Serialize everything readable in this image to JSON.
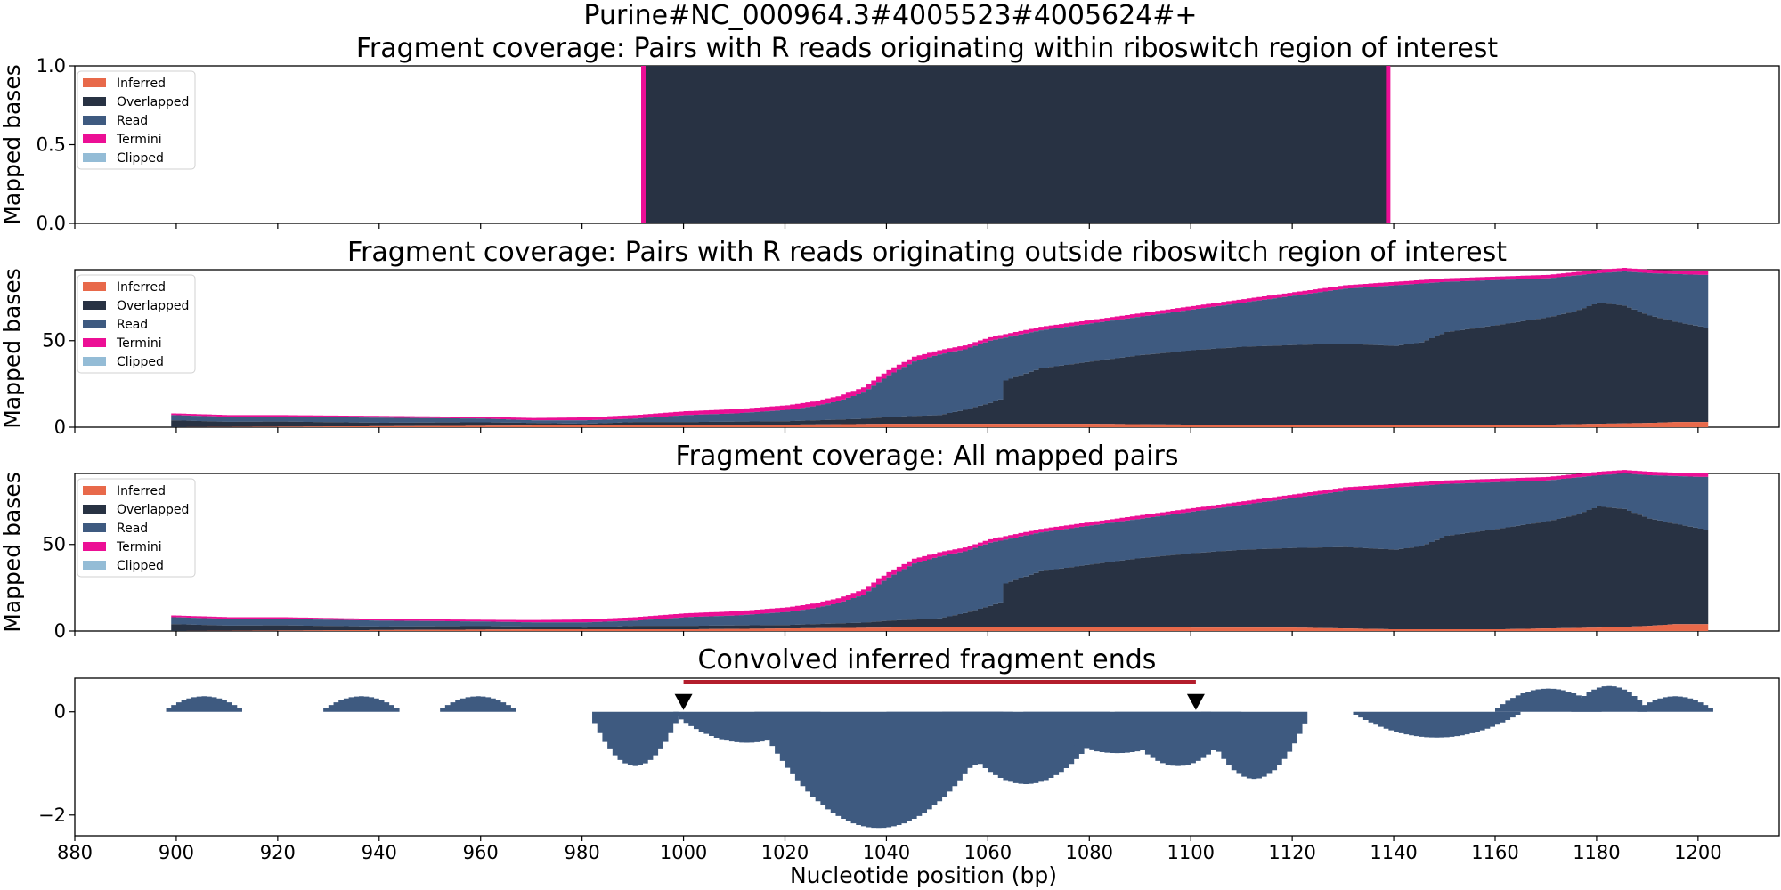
{
  "figure": {
    "suptitle": "Purine#NC_000964.3#4005523#4005624#+",
    "xlabel": "Nucleotide position (bp)",
    "xlim": [
      880,
      1216
    ],
    "xticks": [
      880,
      900,
      920,
      940,
      960,
      980,
      1000,
      1020,
      1040,
      1060,
      1080,
      1100,
      1120,
      1140,
      1160,
      1180,
      1200
    ]
  },
  "colors": {
    "inferred": "#e8694a",
    "overlapped": "#283243",
    "read": "#3e5a80",
    "termini": "#ec0f95",
    "clipped": "#94bcd6",
    "hist": "#3e5a80",
    "region_bar": "#b31d2c",
    "marker": "#000000"
  },
  "legend": [
    "Inferred",
    "Overlapped",
    "Read",
    "Termini",
    "Clipped"
  ],
  "chart_data": [
    {
      "type": "area",
      "title": "Fragment coverage: Pairs with R reads originating within riboswitch region of interest",
      "ylabel": "Mapped bases",
      "ylim": [
        0,
        1.0
      ],
      "yticks": [
        "0.0",
        "0.5",
        "1.0"
      ],
      "series": [
        {
          "name": "Overlapped",
          "x": [
            992,
            1139
          ],
          "values": [
            1.0,
            1.0
          ]
        },
        {
          "name": "Termini",
          "x": [
            992,
            1139
          ],
          "values": [
            1.0,
            1.0
          ]
        }
      ]
    },
    {
      "type": "area",
      "title": "Fragment coverage: Pairs with R reads originating outside riboswitch region of interest",
      "ylabel": "Mapped bases",
      "ylim": [
        0,
        91
      ],
      "yticks": [
        "0",
        "50"
      ],
      "series": [
        {
          "name": "Inferred",
          "x": [
            899,
            970,
            1000,
            1020,
            1040,
            1060,
            1080,
            1100,
            1120,
            1140,
            1160,
            1180,
            1190,
            1195,
            1202
          ],
          "values": [
            0,
            1,
            1,
            1.5,
            2,
            2,
            2,
            1.5,
            1.5,
            1,
            1,
            2,
            2.5,
            3,
            3
          ]
        },
        {
          "name": "Overlapped",
          "x": [
            899,
            910,
            920,
            940,
            960,
            980,
            990,
            1000,
            1020,
            1035,
            1040,
            1050,
            1055,
            1060,
            1062,
            1063,
            1070,
            1080,
            1090,
            1100,
            1110,
            1120,
            1130,
            1140,
            1145,
            1150,
            1160,
            1170,
            1175,
            1180,
            1185,
            1190,
            1195,
            1202
          ],
          "values": [
            4,
            3,
            3,
            2,
            2,
            1,
            2,
            2,
            2,
            3,
            4,
            5,
            8,
            12,
            14,
            25,
            32,
            36,
            40,
            43,
            45,
            46,
            47,
            46,
            48,
            54,
            58,
            62,
            65,
            70,
            68,
            62,
            58,
            54
          ]
        },
        {
          "name": "Read",
          "x": [
            899,
            910,
            920,
            940,
            960,
            970,
            980,
            990,
            1000,
            1010,
            1020,
            1025,
            1030,
            1035,
            1040,
            1045,
            1050,
            1055,
            1060,
            1070,
            1080,
            1090,
            1100,
            1110,
            1120,
            1130,
            1140,
            1150,
            1160,
            1170,
            1180,
            1185,
            1190,
            1200,
            1202
          ],
          "values": [
            7,
            6,
            6,
            5.5,
            5,
            4,
            4,
            5,
            7,
            8,
            10,
            12,
            15,
            20,
            30,
            38,
            42,
            45,
            50,
            56,
            60,
            64,
            68,
            72,
            76,
            80,
            82,
            84,
            85,
            86,
            89,
            90,
            89,
            88,
            88
          ]
        },
        {
          "name": "Termini",
          "x": [
            899,
            960,
            990,
            1035,
            1040,
            1060,
            1100,
            1140,
            1180,
            1190,
            1202
          ],
          "values": [
            1,
            1,
            2,
            3,
            3,
            2,
            2,
            2,
            2,
            2,
            2
          ]
        }
      ]
    },
    {
      "type": "area",
      "title": "Fragment coverage: All mapped pairs",
      "ylabel": "Mapped bases",
      "ylim": [
        0,
        91
      ],
      "yticks": [
        "0",
        "50"
      ],
      "series": [
        {
          "name": "Inferred",
          "x": [
            899,
            970,
            1000,
            1020,
            1040,
            1060,
            1080,
            1100,
            1120,
            1140,
            1160,
            1180,
            1190,
            1195,
            1202
          ],
          "values": [
            0,
            1,
            1,
            1.5,
            2,
            2.5,
            2.5,
            2,
            2,
            1,
            1,
            2,
            3,
            4,
            4
          ]
        },
        {
          "name": "Overlapped",
          "x": [
            899,
            910,
            920,
            940,
            960,
            980,
            990,
            1000,
            1020,
            1035,
            1040,
            1050,
            1055,
            1060,
            1062,
            1063,
            1070,
            1080,
            1090,
            1100,
            1110,
            1120,
            1130,
            1140,
            1145,
            1150,
            1160,
            1170,
            1175,
            1180,
            1185,
            1190,
            1195,
            1202
          ],
          "values": [
            4,
            3,
            3,
            2,
            2,
            1,
            2,
            2,
            2,
            3,
            4,
            5,
            8,
            12,
            14,
            25,
            32,
            36,
            40,
            43,
            45,
            46,
            47,
            46,
            48,
            54,
            58,
            62,
            65,
            70,
            68,
            62,
            58,
            54
          ]
        },
        {
          "name": "Read",
          "x": [
            899,
            910,
            920,
            940,
            960,
            970,
            980,
            990,
            1000,
            1010,
            1020,
            1025,
            1030,
            1035,
            1040,
            1045,
            1050,
            1055,
            1060,
            1070,
            1080,
            1090,
            1100,
            1110,
            1120,
            1130,
            1140,
            1150,
            1160,
            1170,
            1180,
            1185,
            1190,
            1200,
            1202
          ],
          "values": [
            8,
            7,
            7,
            6,
            5.5,
            5,
            5,
            6,
            8,
            9,
            11,
            13,
            16,
            21,
            31,
            39,
            43,
            46,
            51,
            57,
            61,
            65,
            69,
            73,
            77,
            81,
            83,
            85,
            86,
            87,
            90,
            91,
            90,
            89,
            89
          ]
        },
        {
          "name": "Termini",
          "x": [
            899,
            960,
            990,
            1035,
            1040,
            1060,
            1100,
            1140,
            1180,
            1190,
            1202
          ],
          "values": [
            1,
            1,
            2,
            3,
            3,
            2,
            2,
            2,
            2,
            2,
            2
          ]
        }
      ]
    },
    {
      "type": "bar",
      "title": "Convolved inferred fragment ends",
      "ylim": [
        -2.4,
        0.65
      ],
      "yticks": [
        "0",
        "−2"
      ],
      "x": [
        905,
        936,
        959,
        990,
        1012,
        1038,
        1052,
        1067,
        1085,
        1097,
        1112,
        1148,
        1170,
        1182,
        1195
      ],
      "values": [
        0.3,
        0.3,
        0.3,
        -1.05,
        -0.6,
        -2.25,
        -1.2,
        -1.4,
        -0.8,
        -1.05,
        -1.3,
        -0.5,
        0.45,
        0.5,
        0.3
      ],
      "widths": [
        7,
        7,
        7,
        8,
        14,
        24,
        12,
        16,
        18,
        12,
        10,
        16,
        10,
        7,
        7
      ],
      "region": [
        1000,
        1101
      ],
      "markers": [
        1000,
        1101
      ]
    }
  ]
}
